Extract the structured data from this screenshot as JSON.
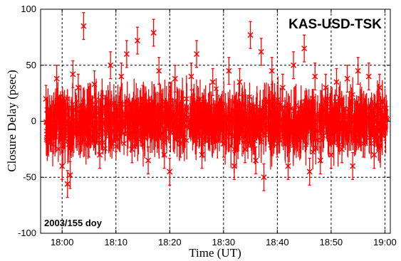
{
  "chart_data": {
    "type": "scatter",
    "title": "",
    "annotations": {
      "baseline": "KAS-USD-TSK",
      "date": "2003/155 doy"
    },
    "xlabel": "Time (UT)",
    "ylabel": "Closure Delay (psec)",
    "x_unit": "UT time of day",
    "xlim": [
      "17:56",
      "19:01"
    ],
    "ylim": [
      -100,
      100
    ],
    "x_ticks": [
      "18:00",
      "18:10",
      "18:20",
      "18:30",
      "18:40",
      "18:50",
      "19:00"
    ],
    "y_ticks": [
      -100,
      -50,
      0,
      50,
      100
    ],
    "grid": true,
    "grid_style": "dashed",
    "series_color": "#ff0000",
    "marker": "x",
    "error_bars": true,
    "series": [
      {
        "points": [
          {
            "x": "17:57:00",
            "y": 20
          },
          {
            "x": "17:58:00",
            "y": -15
          },
          {
            "x": "17:59:00",
            "y": 38
          },
          {
            "x": "18:00:00",
            "y": -40
          },
          {
            "x": "18:01:00",
            "y": -56
          },
          {
            "x": "18:01:30",
            "y": -48
          },
          {
            "x": "18:02:00",
            "y": 42
          },
          {
            "x": "18:03:00",
            "y": 30
          },
          {
            "x": "18:04:00",
            "y": 85
          },
          {
            "x": "18:05:00",
            "y": -20
          },
          {
            "x": "18:06:00",
            "y": 33
          },
          {
            "x": "18:07:00",
            "y": -30
          },
          {
            "x": "18:09:00",
            "y": 50
          },
          {
            "x": "18:10:00",
            "y": -15
          },
          {
            "x": "18:11:00",
            "y": 40
          },
          {
            "x": "18:12:00",
            "y": 60
          },
          {
            "x": "18:13:00",
            "y": -25
          },
          {
            "x": "18:14:00",
            "y": 72
          },
          {
            "x": "18:15:00",
            "y": 20
          },
          {
            "x": "18:16:00",
            "y": -35
          },
          {
            "x": "18:17:00",
            "y": 79
          },
          {
            "x": "18:18:00",
            "y": 45
          },
          {
            "x": "18:19:00",
            "y": -30
          },
          {
            "x": "18:20:00",
            "y": -45
          },
          {
            "x": "18:21:00",
            "y": 38
          },
          {
            "x": "18:22:00",
            "y": -20
          },
          {
            "x": "18:24:00",
            "y": 40
          },
          {
            "x": "18:25:00",
            "y": 60
          },
          {
            "x": "18:26:00",
            "y": -30
          },
          {
            "x": "18:28:00",
            "y": 35
          },
          {
            "x": "18:30:00",
            "y": -20
          },
          {
            "x": "18:31:00",
            "y": 45
          },
          {
            "x": "18:32:00",
            "y": -40
          },
          {
            "x": "18:33:00",
            "y": 35
          },
          {
            "x": "18:34:00",
            "y": -25
          },
          {
            "x": "18:35:00",
            "y": 77
          },
          {
            "x": "18:36:00",
            "y": -35
          },
          {
            "x": "18:37:00",
            "y": 62
          },
          {
            "x": "18:37:30",
            "y": -50
          },
          {
            "x": "18:39:00",
            "y": 45
          },
          {
            "x": "18:40:00",
            "y": -20
          },
          {
            "x": "18:41:00",
            "y": 30
          },
          {
            "x": "18:42:00",
            "y": -40
          },
          {
            "x": "18:43:00",
            "y": 50
          },
          {
            "x": "18:45:00",
            "y": 65
          },
          {
            "x": "18:46:00",
            "y": -45
          },
          {
            "x": "18:47:00",
            "y": 40
          },
          {
            "x": "18:48:00",
            "y": -35
          },
          {
            "x": "18:49:00",
            "y": 30
          },
          {
            "x": "18:50:00",
            "y": -30
          },
          {
            "x": "18:51:00",
            "y": 35
          },
          {
            "x": "18:52:00",
            "y": -25
          },
          {
            "x": "18:53:00",
            "y": 38
          },
          {
            "x": "18:54:00",
            "y": -40
          },
          {
            "x": "18:55:00",
            "y": 45
          },
          {
            "x": "18:56:00",
            "y": -20
          },
          {
            "x": "18:57:00",
            "y": 40
          },
          {
            "x": "18:58:00",
            "y": -30
          },
          {
            "x": "18:59:00",
            "y": 30
          },
          {
            "x": "19:00:00",
            "y": -5
          }
        ]
      }
    ]
  }
}
